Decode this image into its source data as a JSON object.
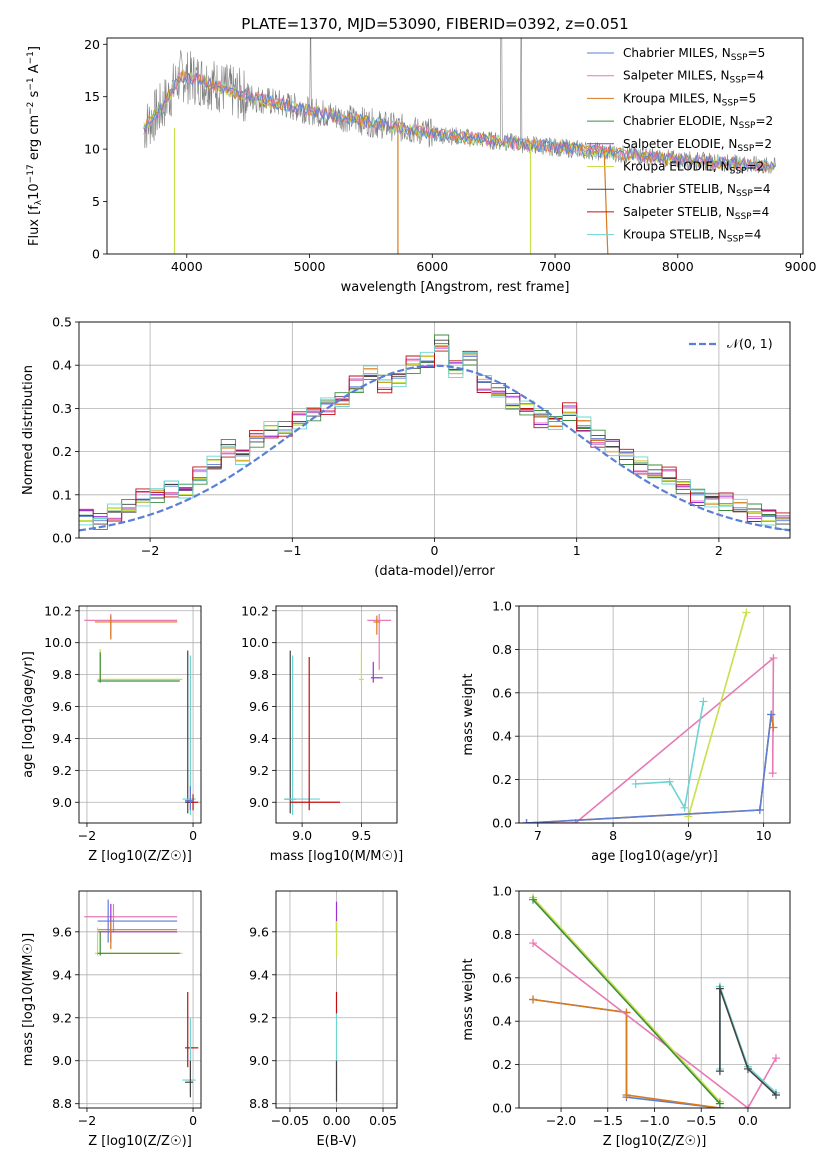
{
  "title": "PLATE=1370, MJD=53090, FIBERID=0392, z=0.051",
  "colors": {
    "Chabrier MILES": "#5b7ed6",
    "Salpeter MILES": "#e879b4",
    "Kroupa MILES": "#d97a1c",
    "Chabrier ELODIE": "#3d8c3d",
    "Salpeter ELODIE": "#9b30d0",
    "Kroupa ELODIE": "#c8e04a",
    "Chabrier STELIB": "#444444",
    "Salpeter STELIB": "#c01010",
    "Kroupa STELIB": "#6dd3d3",
    "data": "#808080",
    "normal": "#5b7ed6"
  },
  "chart_data": [
    {
      "id": "spectrum",
      "type": "line",
      "xlabel": "wavelength [Angstrom, rest frame]",
      "ylabel": "Flux [f_λ10^{−17} erg cm^{−2} s^{−1} A^{−1}]",
      "ylabel_parts": [
        "Flux [f",
        "λ",
        "10",
        "−17",
        " erg cm",
        "−2",
        " s",
        "−1",
        " A",
        "−1",
        "]"
      ],
      "xlim": [
        3350,
        9020
      ],
      "ylim": [
        0,
        20.6
      ],
      "xticks": [
        4000,
        5000,
        6000,
        7000,
        8000,
        9000
      ],
      "yticks": [
        0,
        5,
        10,
        15,
        20
      ],
      "legend": "top-right",
      "legend_entries": [
        {
          "model": "Chabrier MILES",
          "n": "5"
        },
        {
          "model": "Salpeter MILES",
          "n": "4"
        },
        {
          "model": "Kroupa MILES",
          "n": "5"
        },
        {
          "model": "Chabrier ELODIE",
          "n": "2"
        },
        {
          "model": "Salpeter ELODIE",
          "n": "2"
        },
        {
          "model": "Kroupa ELODIE",
          "n": "2"
        },
        {
          "model": "Chabrier STELIB",
          "n": "4"
        },
        {
          "model": "Salpeter STELIB",
          "n": "4"
        },
        {
          "model": "Kroupa STELIB",
          "n": "4"
        }
      ],
      "continuum": [
        [
          3650,
          12
        ],
        [
          3800,
          14
        ],
        [
          3950,
          17
        ],
        [
          4150,
          16.5
        ],
        [
          4400,
          15.3
        ],
        [
          4800,
          14.2
        ],
        [
          5200,
          13.2
        ],
        [
          5600,
          12.3
        ],
        [
          6000,
          11.5
        ],
        [
          6500,
          10.8
        ],
        [
          7000,
          10.2
        ],
        [
          7500,
          9.6
        ],
        [
          8000,
          9.0
        ],
        [
          8500,
          8.6
        ],
        [
          8800,
          8.3
        ]
      ]
    },
    {
      "id": "residuals",
      "type": "bar",
      "xlabel": "(data-model)/error",
      "ylabel": "Normed distribution",
      "xlim": [
        -2.5,
        2.5
      ],
      "ylim": [
        0,
        0.5
      ],
      "xticks": [
        -2,
        -1,
        0,
        1,
        2
      ],
      "yticks": [
        0.0,
        0.1,
        0.2,
        0.3,
        0.4,
        0.5
      ],
      "legend": "top-right",
      "legend_label": "𝒩(0, 1)",
      "bin_width": 0.1,
      "histogram": [
        0.05,
        0.04,
        0.06,
        0.07,
        0.09,
        0.1,
        0.12,
        0.11,
        0.14,
        0.17,
        0.21,
        0.19,
        0.23,
        0.25,
        0.25,
        0.27,
        0.29,
        0.31,
        0.32,
        0.35,
        0.38,
        0.36,
        0.37,
        0.4,
        0.41,
        0.45,
        0.39,
        0.42,
        0.36,
        0.34,
        0.31,
        0.3,
        0.28,
        0.27,
        0.29,
        0.26,
        0.23,
        0.21,
        0.19,
        0.17,
        0.15,
        0.14,
        0.12,
        0.1,
        0.09,
        0.08,
        0.07,
        0.06,
        0.05,
        0.04
      ]
    },
    {
      "id": "age_vs_Z",
      "type": "scatter",
      "xlabel": "Z [log10(Z/Z☉)]",
      "ylabel": "age  [log10(age/yr)]",
      "xlim": [
        -2.15,
        0.15
      ],
      "ylim": [
        8.87,
        10.23
      ],
      "xticks": [
        -2,
        0
      ],
      "yticks": [
        9.0,
        9.2,
        9.4,
        9.6,
        9.8,
        10.0,
        10.2
      ],
      "points": [
        {
          "model": "Salpeter MILES",
          "x": -1.55,
          "y": 10.14,
          "x_lo": -2.05,
          "x_hi": -0.3,
          "y_lo": 10.03,
          "y_hi": 10.18
        },
        {
          "model": "Kroupa MILES",
          "x": -1.55,
          "y": 10.13,
          "x_lo": -1.85,
          "x_hi": -0.3,
          "y_lo": 10.02,
          "y_hi": 10.17
        },
        {
          "model": "Kroupa ELODIE",
          "x": -1.75,
          "y": 9.77,
          "x_lo": -1.8,
          "x_hi": -0.2,
          "y_lo": 9.76,
          "y_hi": 9.96
        },
        {
          "model": "Chabrier ELODIE",
          "x": -1.75,
          "y": 9.76,
          "x_lo": -1.8,
          "x_hi": -0.25,
          "y_lo": 9.75,
          "y_hi": 9.94
        },
        {
          "model": "Chabrier STELIB",
          "x": -0.1,
          "y": 9.0,
          "x_lo": -0.15,
          "x_hi": 0.0,
          "y_lo": 8.93,
          "y_hi": 9.95
        },
        {
          "model": "Kroupa STELIB",
          "x": -0.05,
          "y": 9.02,
          "x_lo": -0.2,
          "x_hi": 0.05,
          "y_lo": 8.92,
          "y_hi": 9.92
        },
        {
          "model": "Salpeter STELIB",
          "x": 0.0,
          "y": 9.0,
          "x_lo": -0.1,
          "x_hi": 0.1,
          "y_lo": 8.95,
          "y_hi": 9.05
        },
        {
          "model": "Chabrier MILES",
          "x": -0.05,
          "y": 9.01,
          "x_lo": -0.15,
          "x_hi": 0.0,
          "y_lo": 8.95,
          "y_hi": 9.1
        }
      ]
    },
    {
      "id": "age_vs_mass",
      "type": "scatter",
      "xlabel": "mass [log10(M/M☉)]",
      "ylabel": "",
      "xlim": [
        8.78,
        9.8
      ],
      "ylim": [
        8.87,
        10.23
      ],
      "xticks": [
        9.0,
        9.5
      ],
      "xtick_labels": [
        "9.0",
        "9.5"
      ],
      "yticks": [
        9.0,
        9.2,
        9.4,
        9.6,
        9.8,
        10.0,
        10.2
      ],
      "points": [
        {
          "model": "Salpeter MILES",
          "x": 9.65,
          "y": 10.14,
          "x_lo": 9.55,
          "x_hi": 9.75,
          "y_lo": 9.83,
          "y_hi": 10.18
        },
        {
          "model": "Kroupa MILES",
          "x": 9.63,
          "y": 10.13,
          "x_lo": 9.6,
          "x_hi": 9.66,
          "y_lo": 10.05,
          "y_hi": 10.17
        },
        {
          "model": "Salpeter ELODIE",
          "x": 9.6,
          "y": 9.78,
          "x_lo": 9.58,
          "x_hi": 9.68,
          "y_lo": 9.75,
          "y_hi": 9.88
        },
        {
          "model": "Kroupa ELODIE",
          "x": 9.5,
          "y": 9.77,
          "x_lo": 9.48,
          "x_hi": 9.52,
          "y_lo": 9.75,
          "y_hi": 9.95
        },
        {
          "model": "Chabrier STELIB",
          "x": 8.9,
          "y": 9.02,
          "x_lo": 8.85,
          "x_hi": 8.95,
          "y_lo": 8.93,
          "y_hi": 9.95
        },
        {
          "model": "Kroupa STELIB",
          "x": 8.92,
          "y": 9.02,
          "x_lo": 8.85,
          "x_hi": 9.15,
          "y_lo": 8.92,
          "y_hi": 9.92
        },
        {
          "model": "Salpeter STELIB",
          "x": 9.06,
          "y": 9.0,
          "x_lo": 8.9,
          "x_hi": 9.32,
          "y_lo": 8.95,
          "y_hi": 9.91
        }
      ]
    },
    {
      "id": "weight_vs_age",
      "type": "line",
      "xlabel": "age  [log10(age/yr)]",
      "ylabel": "mass weight",
      "xlim": [
        6.75,
        10.35
      ],
      "ylim": [
        0,
        1
      ],
      "xticks": [
        7,
        8,
        9,
        10
      ],
      "yticks": [
        0.0,
        0.2,
        0.4,
        0.6,
        0.8,
        1.0
      ],
      "series": [
        {
          "model": "Salpeter MILES",
          "points": [
            [
              6.85,
              0.0
            ],
            [
              7.5,
              0.0
            ],
            [
              10.13,
              0.76
            ],
            [
              10.12,
              0.23
            ]
          ]
        },
        {
          "model": "Kroupa MILES",
          "points": [
            [
              6.85,
              0.0
            ],
            [
              9.95,
              0.06
            ],
            [
              10.1,
              0.5
            ],
            [
              10.13,
              0.44
            ]
          ]
        },
        {
          "model": "Kroupa ELODIE",
          "points": [
            [
              9.0,
              0.03
            ],
            [
              9.77,
              0.97
            ]
          ]
        },
        {
          "model": "Kroupa STELIB",
          "points": [
            [
              8.3,
              0.18
            ],
            [
              8.75,
              0.19
            ],
            [
              8.95,
              0.07
            ],
            [
              9.2,
              0.56
            ]
          ]
        },
        {
          "model": "Chabrier MILES",
          "points": [
            [
              6.85,
              0.0
            ],
            [
              9.95,
              0.06
            ],
            [
              10.1,
              0.5
            ]
          ]
        }
      ]
    },
    {
      "id": "mass_vs_Z",
      "type": "scatter",
      "xlabel": "Z [log10(Z/Z☉)]",
      "ylabel": "mass [log10(M/M☉)]",
      "xlim": [
        -2.15,
        0.15
      ],
      "ylim": [
        8.78,
        9.79
      ],
      "xticks": [
        -2,
        0
      ],
      "yticks": [
        8.8,
        9.0,
        9.2,
        9.4,
        9.6
      ],
      "points": [
        {
          "model": "Salpeter MILES",
          "x": -1.5,
          "y": 9.67,
          "x_lo": -2.05,
          "x_hi": -0.3,
          "y_lo": 9.6,
          "y_hi": 9.73
        },
        {
          "model": "Salpeter ELODIE",
          "x": -1.55,
          "y": 9.6,
          "x_lo": -1.8,
          "x_hi": -0.3,
          "y_lo": 9.55,
          "y_hi": 9.73
        },
        {
          "model": "Kroupa MILES",
          "x": -1.55,
          "y": 9.61,
          "x_lo": -1.8,
          "x_hi": -0.3,
          "y_lo": 9.52,
          "y_hi": 9.65
        },
        {
          "model": "Chabrier MILES",
          "x": -1.6,
          "y": 9.65,
          "x_lo": -1.8,
          "x_hi": -0.3,
          "y_lo": 9.55,
          "y_hi": 9.75
        },
        {
          "model": "Kroupa ELODIE",
          "x": -1.8,
          "y": 9.5,
          "x_lo": -1.85,
          "x_hi": -0.2,
          "y_lo": 9.49,
          "y_hi": 9.62
        },
        {
          "model": "Chabrier ELODIE",
          "x": -1.75,
          "y": 9.5,
          "x_lo": -1.8,
          "x_hi": -0.25,
          "y_lo": 9.49,
          "y_hi": 9.6
        },
        {
          "model": "Salpeter STELIB",
          "x": -0.1,
          "y": 9.06,
          "x_lo": -0.15,
          "x_hi": 0.1,
          "y_lo": 8.97,
          "y_hi": 9.32
        },
        {
          "model": "Kroupa STELIB",
          "x": -0.05,
          "y": 8.91,
          "x_lo": -0.2,
          "x_hi": 0.05,
          "y_lo": 8.85,
          "y_hi": 9.2
        },
        {
          "model": "Chabrier STELIB",
          "x": -0.05,
          "y": 8.9,
          "x_lo": -0.15,
          "x_hi": 0.0,
          "y_lo": 8.83,
          "y_hi": 9.0
        }
      ]
    },
    {
      "id": "mass_vs_EBV",
      "type": "scatter",
      "xlabel": "E(B-V)",
      "ylabel": "",
      "xlim": [
        -0.065,
        0.065
      ],
      "ylim": [
        8.78,
        9.79
      ],
      "xticks": [
        -0.05,
        0.0,
        0.05
      ],
      "xtick_labels": [
        "−0.05",
        "0.00",
        "0.05"
      ],
      "yticks": [
        8.8,
        9.0,
        9.2,
        9.4,
        9.6
      ],
      "points": [
        {
          "model": "Salpeter ELODIE",
          "x": 0.0,
          "y": 9.65,
          "x_lo": 0.0,
          "x_hi": 0.0,
          "y_lo": 9.6,
          "y_hi": 9.74
        },
        {
          "model": "Kroupa ELODIE",
          "x": 0.0,
          "y": 9.55,
          "x_lo": 0.0,
          "x_hi": 0.0,
          "y_lo": 9.48,
          "y_hi": 9.65
        },
        {
          "model": "Salpeter STELIB",
          "x": 0.0,
          "y": 9.27,
          "x_lo": 0.0,
          "x_hi": 0.0,
          "y_lo": 9.22,
          "y_hi": 9.32
        },
        {
          "model": "Kroupa STELIB",
          "x": 0.0,
          "y": 9.0,
          "x_lo": 0.0,
          "x_hi": 0.0,
          "y_lo": 8.85,
          "y_hi": 9.22
        },
        {
          "model": "Chabrier STELIB",
          "x": 0.0,
          "y": 8.9,
          "x_lo": 0.0,
          "x_hi": 0.0,
          "y_lo": 8.81,
          "y_hi": 9.0
        }
      ]
    },
    {
      "id": "weight_vs_Z",
      "type": "line",
      "xlabel": "Z [log10(Z/Z☉)]",
      "ylabel": "mass weight",
      "xlim": [
        -2.45,
        0.45
      ],
      "ylim": [
        0,
        1
      ],
      "xticks": [
        -2.0,
        -1.5,
        -1.0,
        -0.5,
        0.0
      ],
      "xtick_labels": [
        "−2.0",
        "−1.5",
        "−1.0",
        "−0.5",
        "0.0"
      ],
      "yticks": [
        0.0,
        0.2,
        0.4,
        0.6,
        0.8,
        1.0
      ],
      "series": [
        {
          "model": "Chabrier MILES",
          "points": [
            [
              -2.3,
              0.5
            ],
            [
              -1.3,
              0.44
            ],
            [
              -1.3,
              0.05
            ],
            [
              -0.3,
              0.0
            ]
          ]
        },
        {
          "model": "Kroupa MILES",
          "points": [
            [
              -2.3,
              0.5
            ],
            [
              -1.3,
              0.44
            ],
            [
              -1.3,
              0.06
            ],
            [
              -0.3,
              0.0
            ]
          ]
        },
        {
          "model": "Salpeter MILES",
          "points": [
            [
              -2.3,
              0.76
            ],
            [
              0.0,
              0.0
            ],
            [
              0.3,
              0.23
            ]
          ]
        },
        {
          "model": "Kroupa ELODIE",
          "points": [
            [
              -2.3,
              0.97
            ],
            [
              -0.3,
              0.03
            ]
          ]
        },
        {
          "model": "Chabrier ELODIE",
          "points": [
            [
              -2.3,
              0.96
            ],
            [
              -0.3,
              0.02
            ]
          ]
        },
        {
          "model": "Kroupa STELIB",
          "points": [
            [
              -0.3,
              0.18
            ],
            [
              -0.3,
              0.56
            ],
            [
              0.0,
              0.19
            ],
            [
              0.3,
              0.07
            ]
          ]
        },
        {
          "model": "Chabrier STELIB",
          "points": [
            [
              -0.3,
              0.17
            ],
            [
              -0.3,
              0.55
            ],
            [
              0.0,
              0.18
            ],
            [
              0.3,
              0.06
            ]
          ]
        }
      ]
    }
  ]
}
